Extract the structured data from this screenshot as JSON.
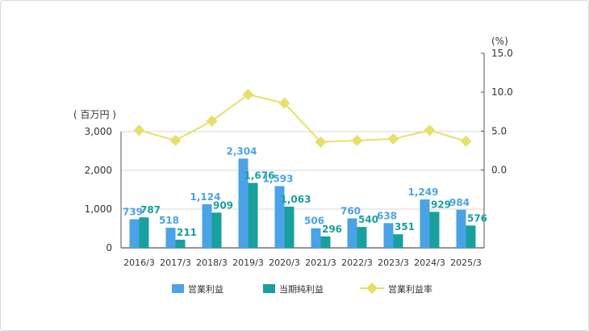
{
  "chart_data": {
    "type": "bar",
    "left_axis_unit": "( 百万円 )",
    "right_axis_unit": "(%)",
    "categories": [
      "2016/3",
      "2017/3",
      "2018/3",
      "2019/3",
      "2020/3",
      "2021/3",
      "2022/3",
      "2023/3",
      "2024/3",
      "2025/3"
    ],
    "left_ticks": [
      "0",
      "1,000",
      "2,000",
      "3,000"
    ],
    "right_ticks": [
      "0.0",
      "5.0",
      "10.0",
      "15.0"
    ],
    "ylim_left": [
      0,
      3000
    ],
    "ylim_right": [
      -10,
      15
    ],
    "series": [
      {
        "name": "営業利益",
        "type": "bar",
        "axis": "left",
        "color": "#4aa3e6",
        "values": [
          739,
          518,
          1124,
          2304,
          1593,
          506,
          760,
          638,
          1249,
          984
        ],
        "labels": [
          "739",
          "518",
          "1,124",
          "2,304",
          "1,593",
          "506",
          "760",
          "638",
          "1,249",
          "984"
        ]
      },
      {
        "name": "当期純利益",
        "type": "bar",
        "axis": "left",
        "color": "#1a9f9f",
        "values": [
          787,
          211,
          909,
          1676,
          1063,
          296,
          540,
          351,
          929,
          576
        ],
        "labels": [
          "787",
          "211",
          "909",
          "1,676",
          "1,063",
          "296",
          "540",
          "351",
          "929",
          "576"
        ]
      },
      {
        "name": "営業利益率",
        "type": "line",
        "axis": "right",
        "color": "#e6e06a",
        "values": [
          5.1,
          3.8,
          6.3,
          9.7,
          8.6,
          3.6,
          3.8,
          4.0,
          5.1,
          3.7
        ]
      }
    ],
    "legend": "bottom"
  }
}
